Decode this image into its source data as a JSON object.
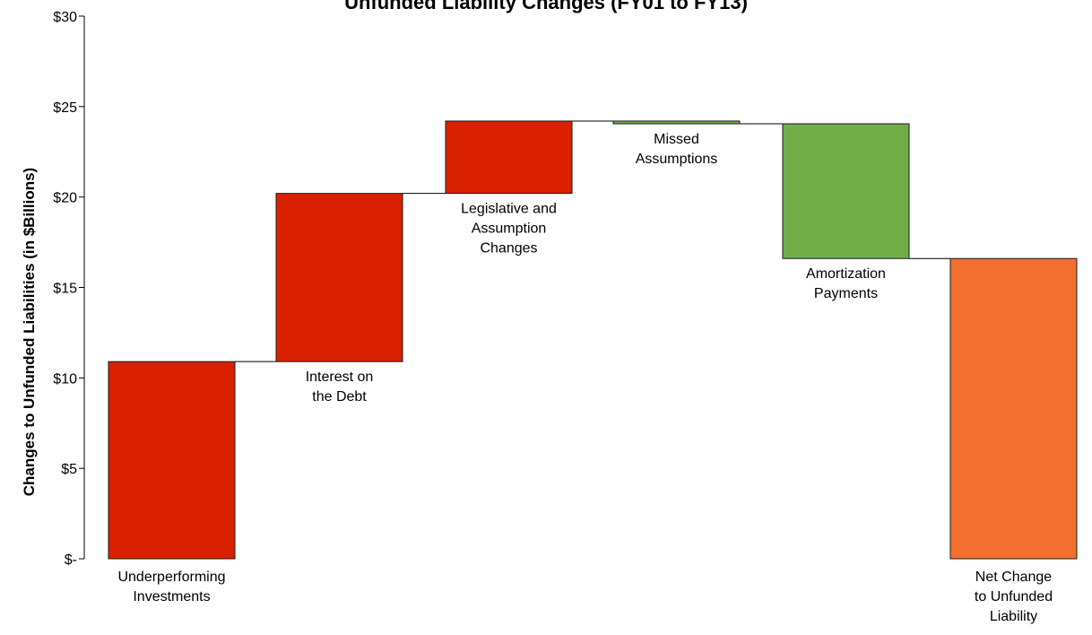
{
  "chart_data": {
    "type": "waterfall",
    "title": "Unfunded Liability Changes (FY01 to FY13)",
    "ylabel": "Changes to Unfunded Liabilities (in $Billions)",
    "ylim": [
      0,
      30
    ],
    "y_ticks": [
      "$-",
      "$5",
      "$10",
      "$15",
      "$20",
      "$25",
      "$30"
    ],
    "grid": false,
    "steps": [
      {
        "label": "Underperforming Investments",
        "start": 0,
        "end": 10.9,
        "kind": "increase"
      },
      {
        "label": "Interest on the Debt",
        "start": 10.9,
        "end": 20.2,
        "kind": "increase"
      },
      {
        "label": "Legislative and Assumption Changes",
        "start": 20.2,
        "end": 24.2,
        "kind": "increase"
      },
      {
        "label": "Missed Assumptions",
        "start": 24.2,
        "end": 24.05,
        "kind": "decrease"
      },
      {
        "label": "Amortization Payments",
        "start": 24.05,
        "end": 16.6,
        "kind": "decrease"
      },
      {
        "label": "Net Change to Unfunded Liability",
        "start": 0,
        "end": 16.6,
        "kind": "total"
      }
    ],
    "colors": {
      "increase": "#d92100",
      "decrease": "#70ad47",
      "total": "#f36f2f",
      "connector": "#000000"
    }
  }
}
